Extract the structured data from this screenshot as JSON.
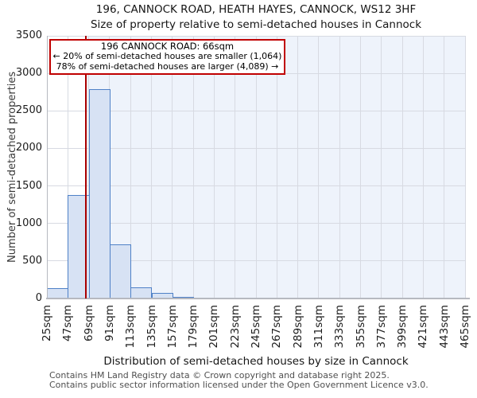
{
  "chart_data": {
    "type": "bar",
    "title": "196, CANNOCK ROAD, HEATH HAYES, CANNOCK, WS12 3HF",
    "subtitle": "Size of property relative to semi-detached houses in Cannock",
    "xlabel": "Distribution of semi-detached houses by size in Cannock",
    "ylabel": "Number of semi-detached properties",
    "categories": [
      "25sqm",
      "47sqm",
      "69sqm",
      "91sqm",
      "113sqm",
      "135sqm",
      "157sqm",
      "179sqm",
      "201sqm",
      "223sqm",
      "245sqm",
      "267sqm",
      "289sqm",
      "311sqm",
      "333sqm",
      "355sqm",
      "377sqm",
      "399sqm",
      "421sqm",
      "443sqm",
      "465sqm"
    ],
    "values": [
      140,
      1380,
      2790,
      720,
      150,
      75,
      25,
      10,
      0,
      0,
      0,
      0,
      0,
      0,
      0,
      0,
      0,
      0,
      0,
      0
    ],
    "bin_width_sqm": 22,
    "xlim_sqm": [
      25,
      465
    ],
    "ylim": [
      0,
      3500
    ],
    "yticks": [
      0,
      500,
      1000,
      1500,
      2000,
      2500,
      3000,
      3500
    ],
    "grid": true,
    "legend": "none",
    "marker_sqm": 66
  },
  "annotation": {
    "line1": "196 CANNOCK ROAD: 66sqm",
    "line2": "← 20% of semi-detached houses are smaller (1,064)",
    "line3": "78% of semi-detached houses are larger (4,089) →"
  },
  "footer": {
    "line1": "Contains HM Land Registry data © Crown copyright and database right 2025.",
    "line2": "Contains public sector information licensed under the Open Government Licence v3.0."
  },
  "colors": {
    "bar_fill": "#d7e2f4",
    "bar_border": "#4f81c7",
    "marker_red": "#aa0000",
    "annotation_border": "#c00000",
    "shade": "#eef3fb",
    "gridline": "#d7dae2",
    "axis": "#b6b9c0"
  }
}
